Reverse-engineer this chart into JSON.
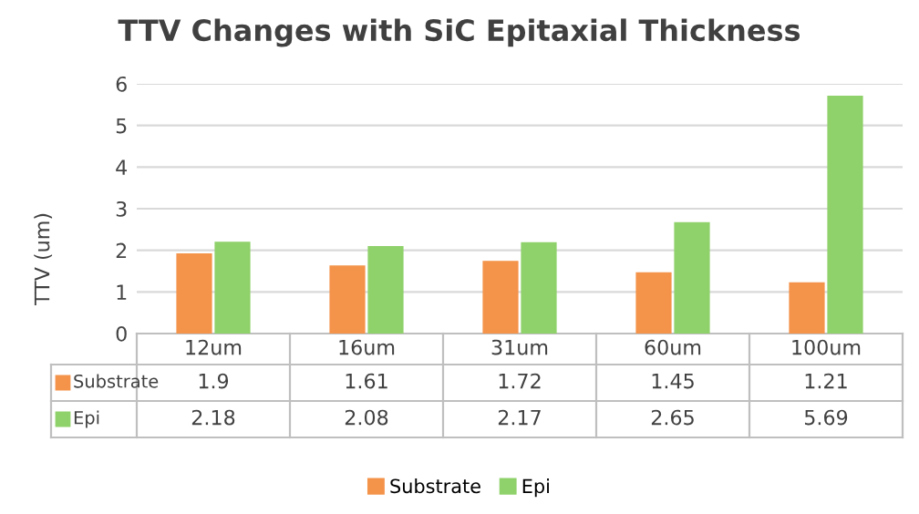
{
  "chart_data": {
    "type": "bar",
    "title": "TTV Changes with SiC Epitaxial Thickness",
    "ylabel": "TTV (um)",
    "categories": [
      "12um",
      "16um",
      "31um",
      "60um",
      "100um"
    ],
    "series": [
      {
        "name": "Substrate",
        "color": "#f4934a",
        "values": [
          1.9,
          1.61,
          1.72,
          1.45,
          1.21
        ]
      },
      {
        "name": "Epi",
        "color": "#8fd16a",
        "values": [
          2.18,
          2.08,
          2.17,
          2.65,
          5.69
        ]
      }
    ],
    "ylim": [
      0,
      6
    ],
    "yticks": [
      0,
      1,
      2,
      3,
      4,
      5,
      6
    ],
    "grid": "y",
    "legend": "bottom",
    "data_labels": true
  }
}
